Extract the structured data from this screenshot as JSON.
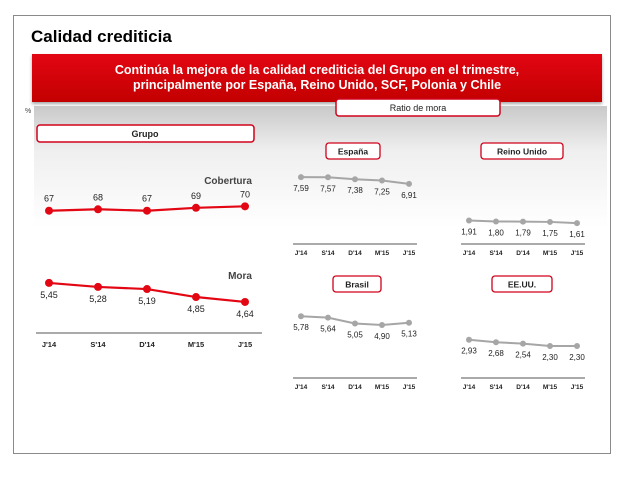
{
  "slide": {
    "title": "Calidad crediticia",
    "banner_line1": "Continúa la mejora de la calidad crediticia del Grupo en el trimestre,",
    "banner_line2": "principalmente por España, Reino Unido, SCF, Polonia y Chile",
    "unit": "%",
    "ratio_label": "Ratio de mora"
  },
  "chart_data": [
    {
      "type": "line",
      "title": "Grupo",
      "categories": [
        "J'14",
        "S'14",
        "D'14",
        "M'15",
        "J'15"
      ],
      "series": [
        {
          "name": "Cobertura",
          "values": [
            67,
            68,
            67,
            69,
            70
          ],
          "labels": [
            "67",
            "68",
            "67",
            "69",
            "70"
          ],
          "color": "#e30613"
        },
        {
          "name": "Mora",
          "values": [
            5.45,
            5.28,
            5.19,
            4.85,
            4.64
          ],
          "labels": [
            "5,45",
            "5,28",
            "5,19",
            "4,85",
            "4,64"
          ],
          "color": "#e30613"
        }
      ]
    },
    {
      "type": "line",
      "title": "España",
      "categories": [
        "J'14",
        "S'14",
        "D'14",
        "M'15",
        "J'15"
      ],
      "values": [
        7.59,
        7.57,
        7.38,
        7.25,
        6.91
      ],
      "labels": [
        "7,59",
        "7,57",
        "7,38",
        "7,25",
        "6,91"
      ],
      "color": "#a6a6a6"
    },
    {
      "type": "line",
      "title": "Reino Unido",
      "categories": [
        "J'14",
        "S'14",
        "D'14",
        "M'15",
        "J'15"
      ],
      "values": [
        1.91,
        1.8,
        1.79,
        1.75,
        1.61
      ],
      "labels": [
        "1,91",
        "1,80",
        "1,79",
        "1,75",
        "1,61"
      ],
      "color": "#a6a6a6"
    },
    {
      "type": "line",
      "title": "Brasil",
      "categories": [
        "J'14",
        "S'14",
        "D'14",
        "M'15",
        "J'15"
      ],
      "values": [
        5.78,
        5.64,
        5.05,
        4.9,
        5.13
      ],
      "labels": [
        "5,78",
        "5,64",
        "5,05",
        "4,90",
        "5,13"
      ],
      "color": "#a6a6a6"
    },
    {
      "type": "line",
      "title": "EE.UU.",
      "categories": [
        "J'14",
        "S'14",
        "D'14",
        "M'15",
        "J'15"
      ],
      "values": [
        2.93,
        2.68,
        2.54,
        2.3,
        2.3
      ],
      "labels": [
        "2,93",
        "2,68",
        "2,54",
        "2,30",
        "2,30"
      ],
      "color": "#a6a6a6"
    }
  ]
}
